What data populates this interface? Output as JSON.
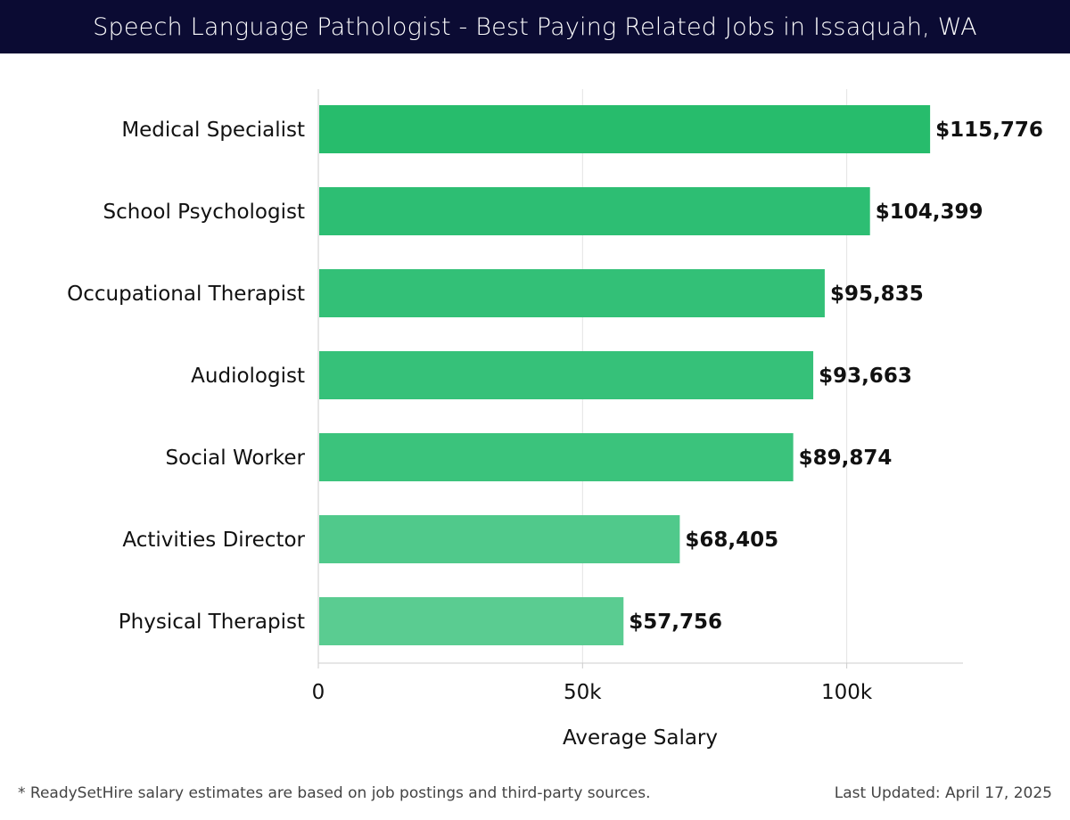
{
  "header": {
    "title": "Speech Language Pathologist - Best Paying Related Jobs in Issaquah, WA"
  },
  "chart_data": {
    "type": "bar",
    "orientation": "horizontal",
    "title": "Speech Language Pathologist - Best Paying Related Jobs in Issaquah, WA",
    "xlabel": "Average Salary",
    "ylabel": "",
    "xlim": [
      0,
      122000
    ],
    "xticks": [
      {
        "value": 0,
        "label": "0"
      },
      {
        "value": 50000,
        "label": "50k"
      },
      {
        "value": 100000,
        "label": "100k"
      }
    ],
    "grid": true,
    "categories": [
      "Medical Specialist",
      "School Psychologist",
      "Occupational Therapist",
      "Audiologist",
      "Social Worker",
      "Activities Director",
      "Physical Therapist"
    ],
    "values": [
      115776,
      104399,
      95835,
      93663,
      89874,
      68405,
      57756
    ],
    "value_labels": [
      "$115,776",
      "$104,399",
      "$95,835",
      "$93,663",
      "$89,874",
      "$68,405",
      "$57,756"
    ],
    "bar_colors": [
      "#27bc6c",
      "#2dbe73",
      "#33c077",
      "#36c179",
      "#3bc37c",
      "#50c98b",
      "#5acc91"
    ]
  },
  "footer": {
    "note": "* ReadySetHire salary estimates are based on job postings and third-party sources.",
    "updated": "Last Updated: April 17, 2025"
  }
}
